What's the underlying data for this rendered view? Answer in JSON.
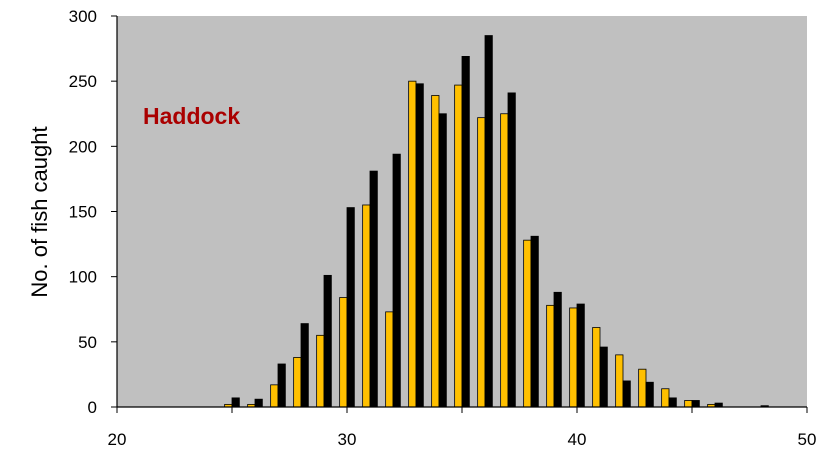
{
  "chart_data": {
    "type": "bar",
    "title": "",
    "xlabel": "",
    "ylabel": "No. of fish caught",
    "annotation": "Haddock",
    "x": [
      25,
      26,
      27,
      28,
      29,
      30,
      31,
      32,
      33,
      34,
      35,
      36,
      37,
      38,
      39,
      40,
      41,
      42,
      43,
      44,
      45,
      46,
      48
    ],
    "series": [
      {
        "values": [
          2,
          2,
          17,
          38,
          55,
          84,
          155,
          73,
          250,
          239,
          247,
          222,
          225,
          128,
          78,
          76,
          61,
          40,
          29,
          14,
          5,
          2,
          0
        ]
      },
      {
        "values": [
          7,
          6,
          33,
          64,
          101,
          153,
          181,
          194,
          248,
          225,
          269,
          285,
          241,
          131,
          88,
          79,
          46,
          20,
          19,
          7,
          5,
          3,
          1
        ]
      }
    ],
    "xlim": [
      20,
      50
    ],
    "ylim": [
      0,
      300
    ],
    "xticks": [
      20,
      30,
      40,
      50
    ],
    "yticks": [
      0,
      50,
      100,
      150,
      200,
      250,
      300
    ],
    "grid": false,
    "legend": "none"
  },
  "colors": {
    "plot_background": "#c0c0c0",
    "series_1": "#ffc000",
    "series_2": "#000000",
    "annotation": "#aa0000"
  }
}
